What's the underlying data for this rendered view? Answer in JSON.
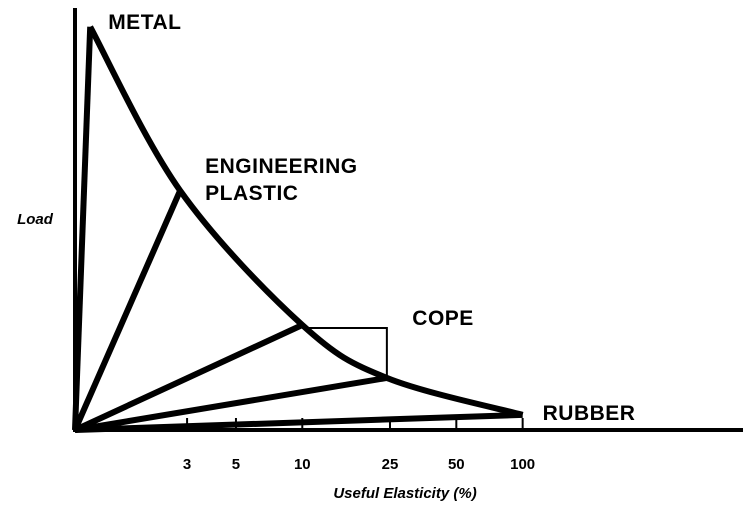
{
  "chart_data": {
    "type": "line",
    "ylabel": "Load",
    "xlabel": "Useful Elasticity (%)",
    "xscale": "log",
    "xlim": [
      0.93,
      1000
    ],
    "xticks": [
      3,
      5,
      10,
      25,
      50,
      100
    ],
    "ylim": [
      0,
      100
    ],
    "color": "#000000",
    "series": [
      {
        "name": "METAL",
        "x": [
          0.93,
          1.09
        ],
        "values": [
          0,
          96
        ]
      },
      {
        "name": "ENGINEERING PLASTIC",
        "x": [
          0.93,
          2.79
        ],
        "values": [
          0,
          57
        ]
      },
      {
        "name": "COPE",
        "x": [
          0.93,
          10
        ],
        "values": [
          0,
          25
        ]
      },
      {
        "x": [
          0.93,
          24.2
        ],
        "values": [
          0,
          12.4
        ]
      },
      {
        "name": "RUBBER",
        "x": [
          0.93,
          100
        ],
        "values": [
          0,
          3.6
        ]
      },
      {
        "x": [
          1.09,
          2.79,
          10,
          24.2,
          100
        ],
        "values": [
          96,
          57,
          25,
          12.4,
          3.6
        ],
        "smooth": true
      }
    ]
  }
}
